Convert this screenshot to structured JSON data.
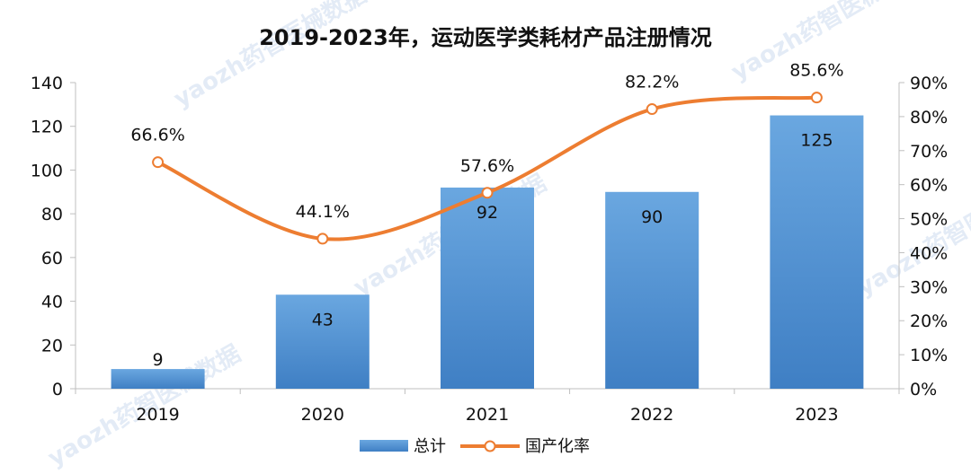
{
  "chart_data": {
    "type": "bar",
    "title": "2019-2023年，运动医学类耗材产品注册情况",
    "categories": [
      "2019",
      "2020",
      "2021",
      "2022",
      "2023"
    ],
    "series": [
      {
        "name": "总计",
        "type": "bar",
        "axis": "left",
        "values": [
          9,
          43,
          92,
          90,
          125
        ],
        "color": "#5b9bd5"
      },
      {
        "name": "国产化率",
        "type": "line",
        "axis": "right",
        "values": [
          66.6,
          44.1,
          57.6,
          82.2,
          85.6
        ],
        "color": "#ed7d31"
      }
    ],
    "bar_labels": [
      "9",
      "43",
      "92",
      "90",
      "125"
    ],
    "line_labels": [
      "66.6%",
      "44.1%",
      "57.6%",
      "82.2%",
      "85.6%"
    ],
    "ylim": [
      0,
      140
    ],
    "y_ticks": [
      "0",
      "20",
      "40",
      "60",
      "80",
      "100",
      "120",
      "140"
    ],
    "y2lim": [
      0,
      90
    ],
    "y2_ticks": [
      "0%",
      "10%",
      "20%",
      "30%",
      "40%",
      "50%",
      "60%",
      "70%",
      "80%",
      "90%"
    ],
    "xlabel": "",
    "ylabel": "",
    "grid": false,
    "legend_position": "bottom",
    "watermark": "yaozh药智医械数据"
  }
}
